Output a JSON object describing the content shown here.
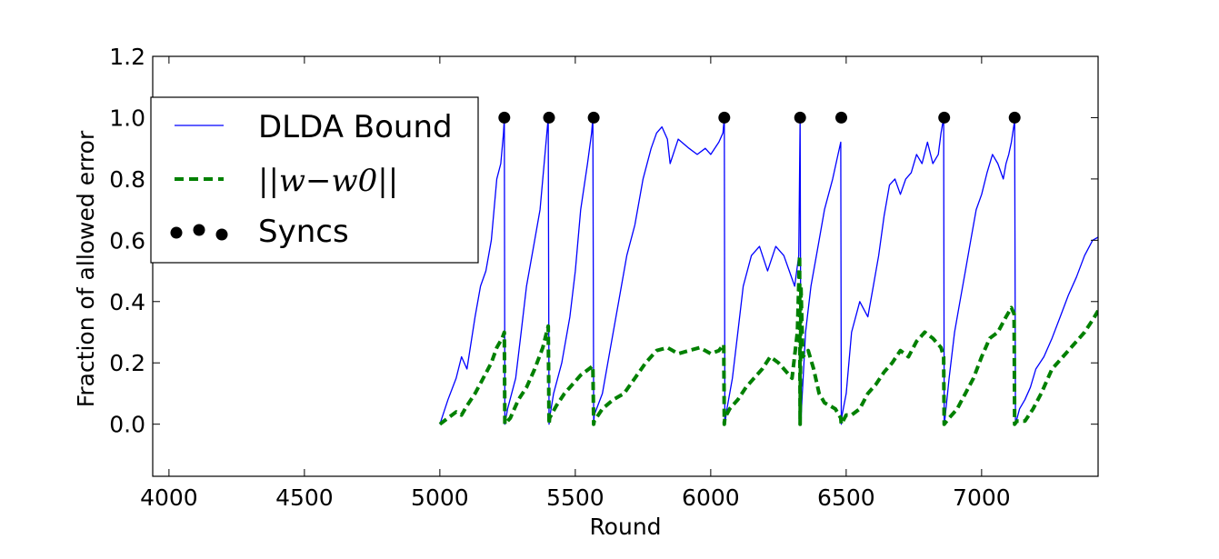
{
  "chart_data": {
    "type": "line",
    "title": "",
    "xlabel": "Round",
    "ylabel": "Fraction of allowed error",
    "xlim": [
      3940,
      7430
    ],
    "ylim": [
      -0.17,
      1.2
    ],
    "xticks": [
      4000,
      4500,
      5000,
      5500,
      6000,
      6500,
      7000
    ],
    "xtick_labels": [
      "4000",
      "4500",
      "5000",
      "5500",
      "6000",
      "6500",
      "7000"
    ],
    "yticks": [
      0.0,
      0.2,
      0.4,
      0.6,
      0.8,
      1.0,
      1.2
    ],
    "ytick_labels": [
      "0.0",
      "0.2",
      "0.4",
      "0.6",
      "0.8",
      "1.0",
      "1.2"
    ],
    "grid": false,
    "legend_position": "upper-left",
    "legend": [
      {
        "label": "DLDA Bound",
        "style": "solid",
        "color": "#0000ff"
      },
      {
        "label": "||w−w0||",
        "style": "dashed",
        "color": "#008000"
      },
      {
        "label": "Syncs",
        "style": "markers",
        "color": "#000000"
      }
    ],
    "series": [
      {
        "name": "DLDA Bound",
        "color": "#0000ff",
        "style": "solid",
        "x": [
          5000,
          5030,
          5060,
          5080,
          5100,
          5130,
          5150,
          5170,
          5190,
          5200,
          5210,
          5225,
          5235,
          5238,
          5240,
          5250,
          5280,
          5300,
          5320,
          5350,
          5370,
          5390,
          5400,
          5403,
          5405,
          5420,
          5450,
          5480,
          5500,
          5520,
          5545,
          5560,
          5565,
          5568,
          5570,
          5600,
          5630,
          5660,
          5690,
          5720,
          5750,
          5780,
          5800,
          5820,
          5840,
          5850,
          5880,
          5920,
          5950,
          5980,
          6000,
          6030,
          6045,
          6050,
          6052,
          6060,
          6080,
          6100,
          6120,
          6150,
          6180,
          6210,
          6240,
          6270,
          6290,
          6310,
          6325,
          6330,
          6333,
          6335,
          6350,
          6370,
          6390,
          6400,
          6420,
          6450,
          6470,
          6480,
          6482,
          6485,
          6500,
          6520,
          6550,
          6580,
          6600,
          6620,
          6640,
          6660,
          6680,
          6700,
          6720,
          6740,
          6760,
          6780,
          6800,
          6820,
          6840,
          6850,
          6860,
          6862,
          6865,
          6880,
          6900,
          6920,
          6940,
          6960,
          6980,
          7000,
          7020,
          7040,
          7060,
          7080,
          7090,
          7100,
          7110,
          7120,
          7122,
          7125,
          7140,
          7160,
          7180,
          7200,
          7230,
          7260,
          7290,
          7320,
          7350,
          7380,
          7410,
          7430
        ],
        "y": [
          0.0,
          0.08,
          0.15,
          0.22,
          0.18,
          0.35,
          0.45,
          0.5,
          0.6,
          0.7,
          0.8,
          0.85,
          0.95,
          1.0,
          0.0,
          0.05,
          0.15,
          0.3,
          0.45,
          0.6,
          0.7,
          0.9,
          1.0,
          0.0,
          0.02,
          0.1,
          0.2,
          0.35,
          0.5,
          0.7,
          0.85,
          0.95,
          1.0,
          0.0,
          0.03,
          0.1,
          0.25,
          0.4,
          0.55,
          0.65,
          0.8,
          0.9,
          0.95,
          0.97,
          0.93,
          0.85,
          0.93,
          0.9,
          0.88,
          0.9,
          0.88,
          0.92,
          0.95,
          1.0,
          0.0,
          0.05,
          0.15,
          0.3,
          0.45,
          0.55,
          0.58,
          0.5,
          0.58,
          0.55,
          0.5,
          0.45,
          0.55,
          1.0,
          0.0,
          0.05,
          0.3,
          0.45,
          0.55,
          0.6,
          0.7,
          0.8,
          0.88,
          0.92,
          0.0,
          0.03,
          0.1,
          0.3,
          0.4,
          0.35,
          0.45,
          0.55,
          0.68,
          0.78,
          0.8,
          0.75,
          0.8,
          0.82,
          0.88,
          0.85,
          0.92,
          0.85,
          0.88,
          0.95,
          1.0,
          0.0,
          0.02,
          0.15,
          0.3,
          0.4,
          0.5,
          0.6,
          0.7,
          0.75,
          0.82,
          0.88,
          0.85,
          0.8,
          0.85,
          0.88,
          0.92,
          0.98,
          1.0,
          0.0,
          0.05,
          0.08,
          0.12,
          0.18,
          0.22,
          0.28,
          0.35,
          0.42,
          0.48,
          0.55,
          0.6,
          0.61
        ]
      },
      {
        "name": "||w−w0||",
        "color": "#008000",
        "style": "dashed",
        "x": [
          5000,
          5030,
          5060,
          5080,
          5100,
          5130,
          5160,
          5190,
          5210,
          5230,
          5238,
          5240,
          5260,
          5290,
          5320,
          5350,
          5380,
          5400,
          5403,
          5405,
          5430,
          5460,
          5490,
          5520,
          5550,
          5565,
          5568,
          5570,
          5600,
          5640,
          5680,
          5720,
          5760,
          5800,
          5840,
          5880,
          5920,
          5960,
          6000,
          6030,
          6048,
          6050,
          6052,
          6070,
          6100,
          6130,
          6160,
          6190,
          6220,
          6250,
          6280,
          6300,
          6320,
          6328,
          6330,
          6333,
          6340,
          6360,
          6380,
          6400,
          6420,
          6440,
          6460,
          6480,
          6482,
          6500,
          6520,
          6550,
          6580,
          6610,
          6640,
          6670,
          6700,
          6730,
          6760,
          6790,
          6820,
          6850,
          6860,
          6862,
          6880,
          6910,
          6940,
          6970,
          7000,
          7030,
          7060,
          7090,
          7110,
          7120,
          7122,
          7130,
          7160,
          7190,
          7220,
          7260,
          7300,
          7340,
          7380,
          7410,
          7430
        ],
        "y": [
          0.0,
          0.02,
          0.04,
          0.03,
          0.06,
          0.1,
          0.15,
          0.2,
          0.25,
          0.28,
          0.3,
          0.0,
          0.02,
          0.08,
          0.12,
          0.18,
          0.25,
          0.32,
          0.0,
          0.02,
          0.06,
          0.1,
          0.13,
          0.16,
          0.18,
          0.19,
          0.0,
          0.01,
          0.05,
          0.08,
          0.1,
          0.15,
          0.2,
          0.24,
          0.25,
          0.23,
          0.24,
          0.25,
          0.23,
          0.24,
          0.26,
          0.0,
          0.02,
          0.05,
          0.08,
          0.12,
          0.15,
          0.18,
          0.22,
          0.2,
          0.17,
          0.15,
          0.3,
          0.55,
          0.0,
          0.45,
          0.22,
          0.24,
          0.18,
          0.1,
          0.07,
          0.06,
          0.05,
          0.02,
          0.0,
          0.03,
          0.03,
          0.05,
          0.1,
          0.13,
          0.17,
          0.2,
          0.24,
          0.22,
          0.27,
          0.3,
          0.28,
          0.25,
          0.22,
          0.0,
          0.02,
          0.05,
          0.1,
          0.15,
          0.22,
          0.28,
          0.3,
          0.35,
          0.38,
          0.36,
          0.0,
          0.01,
          0.01,
          0.05,
          0.1,
          0.18,
          0.22,
          0.26,
          0.3,
          0.34,
          0.37
        ]
      }
    ],
    "syncs": {
      "name": "Syncs",
      "color": "#000000",
      "x": [
        5238,
        5403,
        5568,
        6050,
        6330,
        6482,
        6862,
        7122
      ],
      "y": [
        1.0,
        1.0,
        1.0,
        1.0,
        1.0,
        1.0,
        1.0,
        1.0
      ]
    }
  }
}
